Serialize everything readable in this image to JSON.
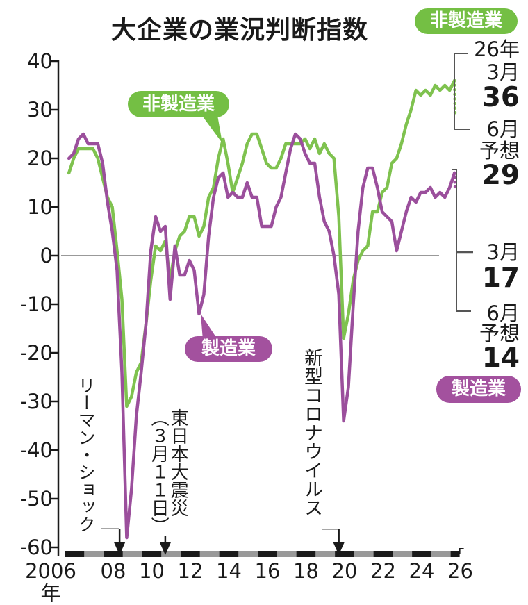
{
  "header": {
    "title": "大企業の業況判断指数"
  },
  "legend": {
    "nonmanufacturing": {
      "label": "非製造業",
      "color": "#74bf44"
    },
    "manufacturing": {
      "label": "製造業",
      "color": "#a3519e"
    }
  },
  "right_panel": {
    "nonmanufacturing": {
      "year": "26年",
      "month": "3月",
      "value": "36",
      "forecast_month": "6月",
      "forecast_word": "予想",
      "forecast_value": "29"
    },
    "manufacturing": {
      "month": "3月",
      "value": "17",
      "forecast_month": "6月",
      "forecast_word": "予想",
      "forecast_value": "14"
    },
    "badge": "製造業"
  },
  "annotations": {
    "lehman": {
      "text": "リーマン・ショック"
    },
    "earthquake": {
      "line1": "東日本大震災",
      "line2": "（３月１１日）"
    },
    "covid": {
      "text": "新型コロナウイルス"
    }
  },
  "chart_data": {
    "type": "line",
    "title": "大企業の業況判断指数",
    "ylim": [
      -60,
      40
    ],
    "y_ticks": [
      40,
      30,
      20,
      10,
      0,
      -10,
      -20,
      -30,
      -40,
      -50,
      -60
    ],
    "x_tick_labels": [
      "2006年",
      "08",
      "10",
      "12",
      "14",
      "16",
      "18",
      "20",
      "22",
      "24",
      "26"
    ],
    "x_start_year": 2006,
    "x_end_year": 2026,
    "quarter_offsets": [
      0.2,
      0.45,
      0.7,
      0.95
    ],
    "grid": "zero-line-only",
    "legend_position": "inline-labels",
    "series": [
      {
        "name": "非製造業",
        "color": "#7fc24f",
        "values": [
          17,
          20,
          22,
          22,
          22,
          22,
          20,
          16,
          12,
          10,
          1,
          -9,
          -31,
          -29,
          -24,
          -22,
          -14,
          -5,
          2,
          1,
          3,
          -5,
          1,
          4,
          5,
          8,
          8,
          4,
          6,
          12,
          14,
          20,
          24,
          19,
          13,
          16,
          19,
          23,
          25,
          25,
          22,
          19,
          18,
          18,
          20,
          23,
          23,
          23,
          23,
          24,
          22,
          24,
          21,
          23,
          21,
          20,
          8,
          -17,
          -12,
          -5,
          -1,
          1,
          2,
          9,
          9,
          13,
          14,
          19,
          20,
          23,
          27,
          30,
          34,
          33,
          34,
          33,
          35,
          34,
          35,
          34,
          36
        ],
        "last_actual": {
          "period": "26年3月",
          "value": 36
        },
        "forecast": {
          "period": "26年6月",
          "value": 29
        }
      },
      {
        "name": "製造業",
        "color": "#9b4f9c",
        "values": [
          20,
          21,
          24,
          25,
          23,
          23,
          23,
          19,
          11,
          5,
          -3,
          -24,
          -58,
          -48,
          -33,
          -24,
          -14,
          1,
          8,
          5,
          6,
          -9,
          2,
          -4,
          -4,
          -1,
          -3,
          -12,
          -8,
          4,
          12,
          16,
          17,
          12,
          13,
          12,
          12,
          15,
          12,
          12,
          6,
          6,
          6,
          10,
          12,
          17,
          22,
          25,
          24,
          21,
          19,
          19,
          12,
          7,
          5,
          0,
          -8,
          -34,
          -27,
          -10,
          5,
          14,
          18,
          18,
          14,
          9,
          8,
          7,
          1,
          5,
          9,
          12,
          11,
          13,
          13,
          14,
          12,
          13,
          12,
          14,
          17
        ],
        "last_actual": {
          "period": "26年3月",
          "value": 17
        },
        "forecast": {
          "period": "26年6月",
          "value": 14
        }
      }
    ],
    "events": [
      {
        "label": "リーマン・ショック",
        "x_year": 2008.83
      },
      {
        "label": "東日本大震災（３月１１日）",
        "x_year": 2011.2
      },
      {
        "label": "新型コロナウイルス",
        "x_year": 2020.2
      }
    ]
  }
}
